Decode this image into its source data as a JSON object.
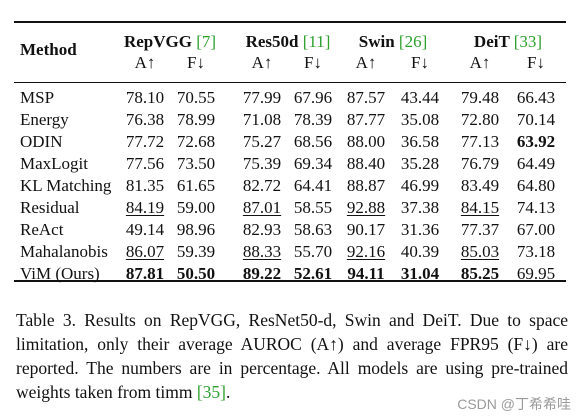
{
  "table": {
    "method_header": "Method",
    "groups": [
      {
        "name": "RepVGG",
        "ref": "[7]"
      },
      {
        "name": "Res50d",
        "ref": "[11]"
      },
      {
        "name": "Swin",
        "ref": "[26]"
      },
      {
        "name": "DeiT",
        "ref": "[33]"
      }
    ],
    "subheaders": [
      "A↑",
      "F↓",
      "A↑",
      "F↓",
      "A↑",
      "F↓",
      "A↑",
      "F↓"
    ],
    "rows": [
      {
        "method": "MSP",
        "values": [
          "78.10",
          "70.55",
          "77.99",
          "67.96",
          "87.57",
          "43.44",
          "79.48",
          "66.43"
        ],
        "bold": [],
        "underline": []
      },
      {
        "method": "Energy",
        "values": [
          "76.38",
          "78.99",
          "71.08",
          "78.39",
          "87.77",
          "35.08",
          "72.80",
          "70.14"
        ],
        "bold": [],
        "underline": []
      },
      {
        "method": "ODIN",
        "values": [
          "77.72",
          "72.68",
          "75.27",
          "68.56",
          "88.00",
          "36.58",
          "77.13",
          "63.92"
        ],
        "bold": [
          7
        ],
        "underline": []
      },
      {
        "method": "MaxLogit",
        "values": [
          "77.56",
          "73.50",
          "75.39",
          "69.34",
          "88.40",
          "35.28",
          "76.79",
          "64.49"
        ],
        "bold": [],
        "underline": []
      },
      {
        "method": "KL Matching",
        "values": [
          "81.35",
          "61.65",
          "82.72",
          "64.41",
          "88.87",
          "46.99",
          "83.49",
          "64.80"
        ],
        "bold": [],
        "underline": []
      },
      {
        "method": "Residual",
        "values": [
          "84.19",
          "59.00",
          "87.01",
          "58.55",
          "92.88",
          "37.38",
          "84.15",
          "74.13"
        ],
        "bold": [],
        "underline": [
          0,
          2,
          4,
          6
        ]
      },
      {
        "method": "ReAct",
        "values": [
          "49.14",
          "98.96",
          "82.93",
          "58.63",
          "90.17",
          "31.36",
          "77.37",
          "67.00"
        ],
        "bold": [],
        "underline": []
      },
      {
        "method": "Mahalanobis",
        "values": [
          "86.07",
          "59.39",
          "88.33",
          "55.70",
          "92.16",
          "40.39",
          "85.03",
          "73.18"
        ],
        "bold": [],
        "underline": [
          0,
          2,
          4,
          6
        ]
      },
      {
        "method": "ViM (Ours)",
        "values": [
          "87.81",
          "50.50",
          "89.22",
          "52.61",
          "94.11",
          "31.04",
          "85.25",
          "69.95"
        ],
        "bold": [
          0,
          1,
          2,
          3,
          4,
          5,
          6
        ],
        "underline": []
      }
    ]
  },
  "caption": {
    "part1": "Table 3.  Results on RepVGG, ResNet50-d, Swin and DeiT. Due to space limitation, only their average AUROC (A↑) and average FPR95 (F↓) are reported.  The numbers are in percentage.  All models are using pre-trained weights taken from timm ",
    "ref": "[35]",
    "part2": "."
  },
  "watermark": "CSDN @丁希希哇"
}
